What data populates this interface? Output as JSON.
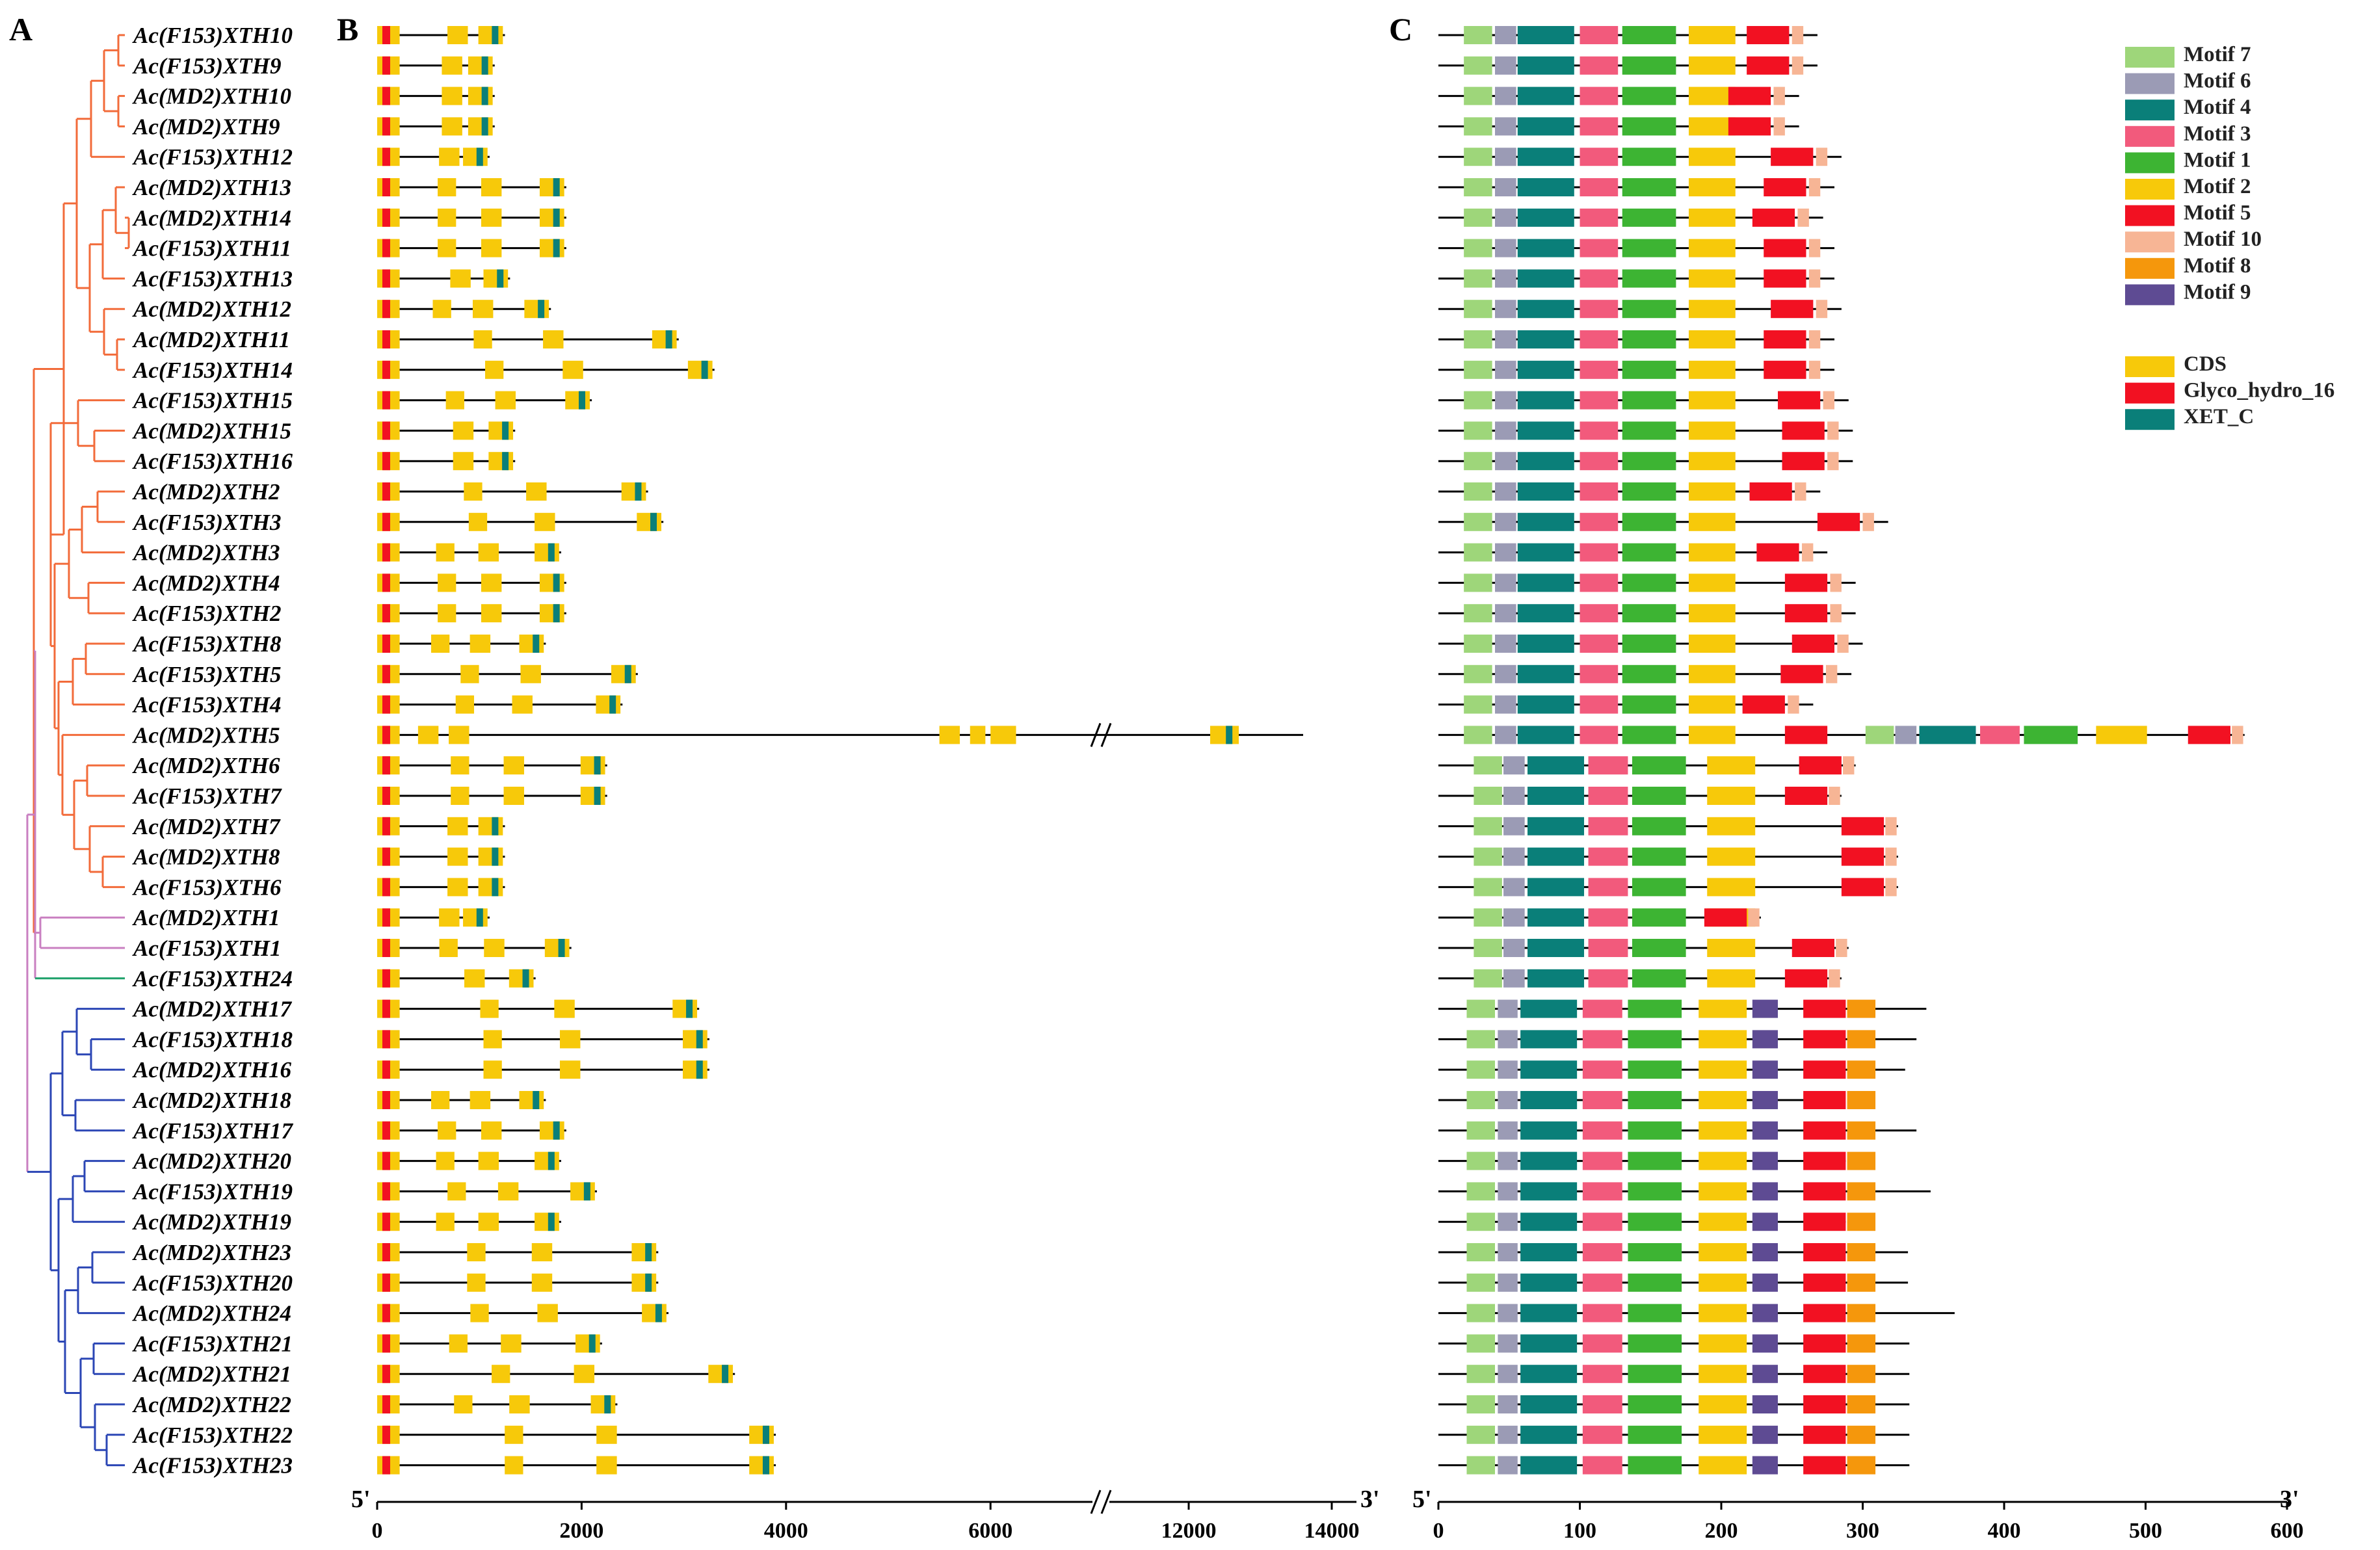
{
  "panels": {
    "a": "A",
    "b": "B",
    "c": "C"
  },
  "genes": [
    "Ac(F153)XTH10",
    "Ac(F153)XTH9",
    "Ac(MD2)XTH10",
    "Ac(MD2)XTH9",
    "Ac(F153)XTH12",
    "Ac(MD2)XTH13",
    "Ac(MD2)XTH14",
    "Ac(F153)XTH11",
    "Ac(F153)XTH13",
    "Ac(MD2)XTH12",
    "Ac(MD2)XTH11",
    "Ac(F153)XTH14",
    "Ac(F153)XTH15",
    "Ac(MD2)XTH15",
    "Ac(F153)XTH16",
    "Ac(MD2)XTH2",
    "Ac(F153)XTH3",
    "Ac(MD2)XTH3",
    "Ac(MD2)XTH4",
    "Ac(F153)XTH2",
    "Ac(F153)XTH8",
    "Ac(F153)XTH5",
    "Ac(F153)XTH4",
    "Ac(MD2)XTH5",
    "Ac(MD2)XTH6",
    "Ac(F153)XTH7",
    "Ac(MD2)XTH7",
    "Ac(MD2)XTH8",
    "Ac(F153)XTH6",
    "Ac(MD2)XTH1",
    "Ac(F153)XTH1",
    "Ac(F153)XTH24",
    "Ac(MD2)XTH17",
    "Ac(F153)XTH18",
    "Ac(MD2)XTH16",
    "Ac(MD2)XTH18",
    "Ac(F153)XTH17",
    "Ac(MD2)XTH20",
    "Ac(F153)XTH19",
    "Ac(MD2)XTH19",
    "Ac(MD2)XTH23",
    "Ac(F153)XTH20",
    "Ac(MD2)XTH24",
    "Ac(F153)XTH21",
    "Ac(MD2)XTH21",
    "Ac(MD2)XTH22",
    "Ac(F153)XTH22",
    "Ac(F153)XTH23"
  ],
  "clade_colors": [
    "#f26b3a",
    "#c97fc1",
    "#1ea16a",
    "#2b46b5"
  ],
  "gene_axis": {
    "ticks": [
      0,
      2000,
      4000,
      6000,
      12000,
      14000
    ],
    "tick_labels": [
      "0",
      "2000",
      "4000",
      "6000",
      "12000",
      "14000"
    ],
    "break_between": [
      7000,
      11000
    ],
    "start_label": "5'",
    "end_label": "3'"
  },
  "protein_axis": {
    "ticks": [
      0,
      100,
      200,
      300,
      400,
      500,
      600
    ],
    "tick_labels": [
      "0",
      "100",
      "200",
      "300",
      "400",
      "500",
      "600"
    ],
    "start_label": "5'",
    "end_label": "3'"
  },
  "motif_legend": [
    {
      "label": "Motif 7",
      "color": "#9ed67a"
    },
    {
      "label": "Motif 6",
      "color": "#9b9bb5"
    },
    {
      "label": "Motif 4",
      "color": "#0a7f79"
    },
    {
      "label": "Motif 3",
      "color": "#f25a7c"
    },
    {
      "label": "Motif 1",
      "color": "#3db433"
    },
    {
      "label": "Motif 2",
      "color": "#f7c90a"
    },
    {
      "label": "Motif 5",
      "color": "#f21122"
    },
    {
      "label": "Motif 10",
      "color": "#f7b595"
    },
    {
      "label": "Motif 8",
      "color": "#f5970c"
    },
    {
      "label": "Motif 9",
      "color": "#5e4b93"
    }
  ],
  "structure_legend": [
    {
      "label": "CDS",
      "color": "#f7c90a"
    },
    {
      "label": "Glyco_hydro_16",
      "color": "#f21122"
    },
    {
      "label": "XET_C",
      "color": "#0a7f79"
    }
  ]
}
